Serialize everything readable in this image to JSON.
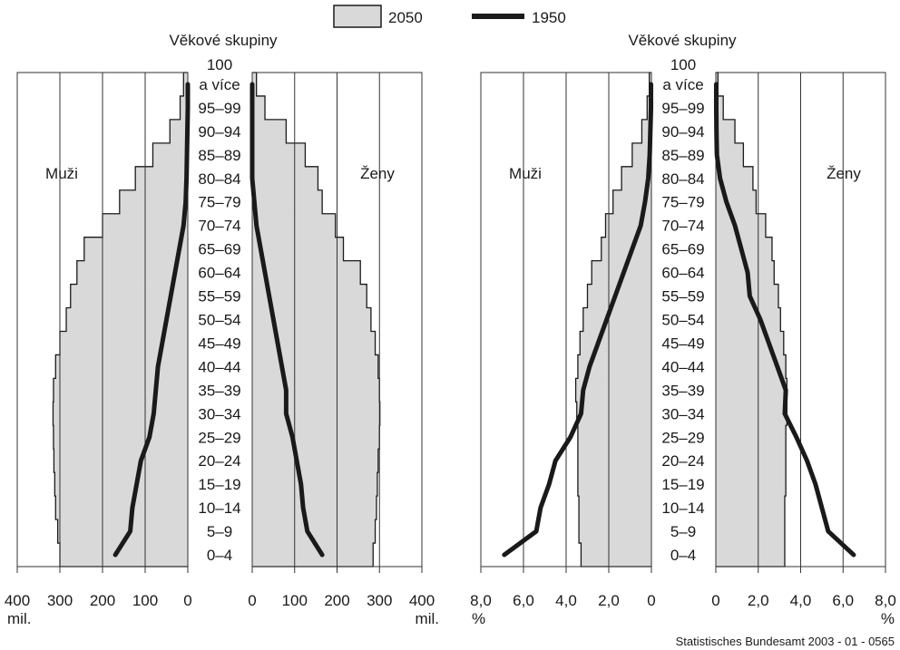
{
  "legend": {
    "items": [
      {
        "label": "2050",
        "kind": "area",
        "color": "#d9d9d9"
      },
      {
        "label": "1950",
        "kind": "line",
        "color": "#1a1a1a"
      }
    ]
  },
  "source": "Statistisches Bundesamt 2003 - 01 - 0565",
  "colors": {
    "area_fill": "#d9d9d9",
    "outline": "#1a1a1a",
    "line": "#1a1a1a",
    "grid": "#333333"
  },
  "chart_data": [
    {
      "type": "area",
      "subtype": "population-pyramid",
      "unit": "mil.",
      "age_axis_title": "Věkové skupiny",
      "age_groups": [
        "0–4",
        "5–9",
        "10–14",
        "15–19",
        "20–24",
        "25–29",
        "30–34",
        "35–39",
        "40–44",
        "45–49",
        "50–54",
        "55–59",
        "60–64",
        "65–69",
        "70–74",
        "75–79",
        "80–84",
        "85–89",
        "90–94",
        "95–99",
        "a více"
      ],
      "age_top_label": "100",
      "left_label": "Muži",
      "right_label": "Ženy",
      "x_ticks": [
        "0",
        "100",
        "200",
        "300",
        "400"
      ],
      "xlim": [
        0,
        400
      ],
      "series": [
        {
          "name": "2050",
          "side": "male",
          "values": [
            300,
            305,
            310,
            312,
            314,
            315,
            316,
            315,
            310,
            300,
            285,
            275,
            260,
            243,
            200,
            160,
            123,
            82,
            42,
            18,
            10
          ]
        },
        {
          "name": "2050",
          "side": "female",
          "values": [
            285,
            290,
            293,
            295,
            297,
            300,
            301,
            300,
            297,
            290,
            280,
            270,
            255,
            215,
            196,
            165,
            155,
            125,
            80,
            30,
            10
          ]
        },
        {
          "name": "1950",
          "side": "male",
          "values": [
            170,
            135,
            130,
            120,
            110,
            90,
            80,
            75,
            70,
            60,
            50,
            40,
            30,
            20,
            10,
            5,
            3,
            2,
            1,
            0,
            0
          ]
        },
        {
          "name": "1950",
          "side": "female",
          "values": [
            165,
            130,
            120,
            115,
            105,
            95,
            80,
            80,
            70,
            60,
            50,
            40,
            30,
            20,
            10,
            5,
            0,
            0,
            0,
            0,
            0
          ]
        }
      ]
    },
    {
      "type": "area",
      "subtype": "population-pyramid",
      "unit": "%",
      "age_axis_title": "Věkové skupiny",
      "age_groups": [
        "0–4",
        "5–9",
        "10–14",
        "15–19",
        "20–24",
        "25–29",
        "30–34",
        "35–39",
        "40–44",
        "45–49",
        "50–54",
        "55–59",
        "60–64",
        "65–69",
        "70–74",
        "75–79",
        "80–84",
        "85–89",
        "90–94",
        "95–99",
        "a více"
      ],
      "age_top_label": "100",
      "left_label": "Muži",
      "right_label": "Ženy",
      "x_ticks": [
        "0",
        "2,0",
        "4,0",
        "6,0",
        "8,0"
      ],
      "xlim": [
        0,
        8.0
      ],
      "series": [
        {
          "name": "2050",
          "side": "male",
          "values": [
            3.3,
            3.4,
            3.4,
            3.45,
            3.45,
            3.45,
            3.5,
            3.55,
            3.45,
            3.35,
            3.2,
            3.0,
            2.8,
            2.35,
            2.15,
            1.8,
            1.4,
            0.9,
            0.45,
            0.2,
            0.1
          ]
        },
        {
          "name": "2050",
          "side": "female",
          "values": [
            3.25,
            3.25,
            3.25,
            3.3,
            3.3,
            3.3,
            3.35,
            3.35,
            3.3,
            3.2,
            3.05,
            2.95,
            2.75,
            2.65,
            2.35,
            1.9,
            1.75,
            1.3,
            0.9,
            0.35,
            0.1
          ]
        },
        {
          "name": "1950",
          "side": "male",
          "values": [
            6.9,
            5.4,
            5.2,
            4.8,
            4.5,
            3.8,
            3.3,
            3.2,
            2.9,
            2.5,
            2.1,
            1.7,
            1.3,
            0.9,
            0.5,
            0.3,
            0.15,
            0.08,
            0.05,
            0.02,
            0.02
          ]
        },
        {
          "name": "1950",
          "side": "female",
          "values": [
            6.5,
            5.3,
            5.0,
            4.7,
            4.3,
            3.8,
            3.25,
            3.3,
            2.9,
            2.5,
            2.1,
            1.6,
            1.5,
            1.2,
            0.9,
            0.5,
            0.2,
            0.05,
            0.03,
            0.02,
            0.02
          ]
        }
      ]
    }
  ]
}
